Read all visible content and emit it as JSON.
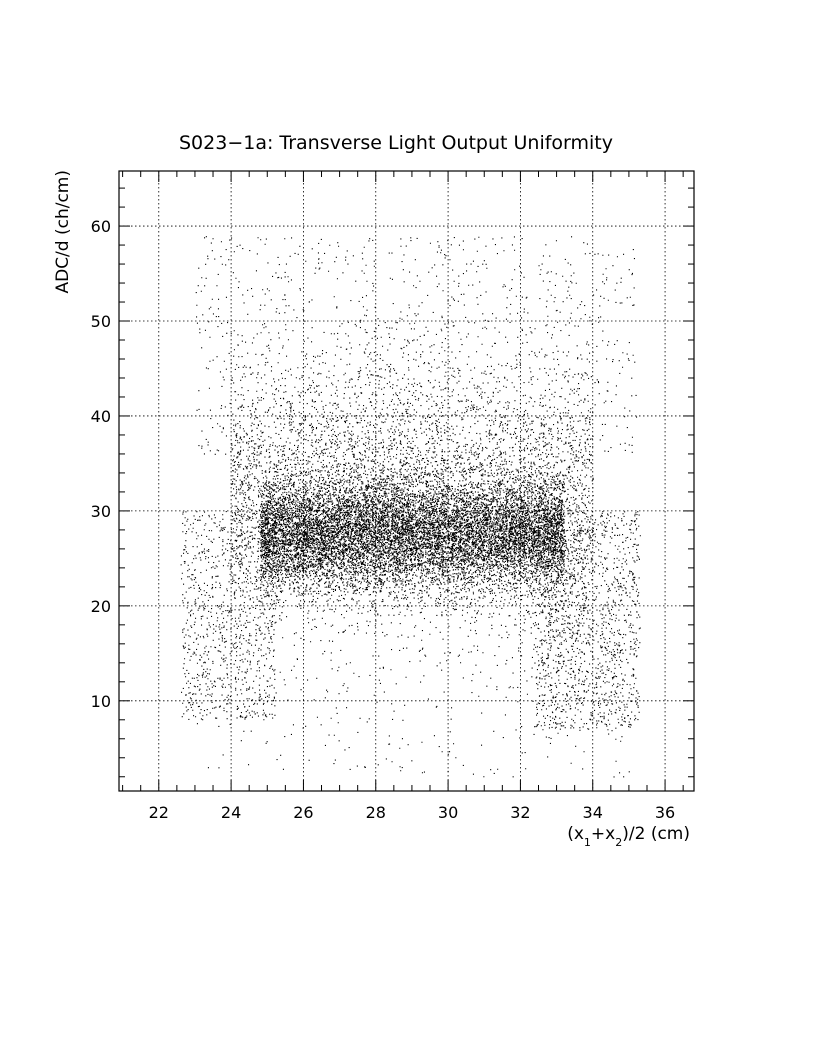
{
  "chart_data": {
    "type": "scatter",
    "title": "S023−1a: Transverse Light Output Uniformity",
    "xlabel": "(x₁+x₂)/2 (cm)",
    "ylabel": "ADC/d (ch/cm)",
    "xlim": [
      20.9,
      36.8
    ],
    "ylim": [
      0.5,
      65.8
    ],
    "x_ticks": [
      22,
      24,
      26,
      28,
      30,
      32,
      34,
      36
    ],
    "y_ticks": [
      10,
      20,
      30,
      40,
      50,
      60
    ],
    "x_tick_labels": [
      "22",
      "24",
      "26",
      "28",
      "30",
      "32",
      "34",
      "36"
    ],
    "y_tick_labels": [
      "10",
      "20",
      "30",
      "40",
      "50",
      "60"
    ],
    "grid": true,
    "legend": "none",
    "marker_color": "#000000",
    "distribution": {
      "core": {
        "x_range": [
          24.8,
          33.2
        ],
        "y_center": 27.5,
        "y_spread": 2.8,
        "points": 11000
      },
      "halo": {
        "x_range": [
          24.0,
          34.0
        ],
        "y_center": 32.0,
        "y_spread": 7.0,
        "points": 5500
      },
      "upper": {
        "x_range": [
          23.0,
          35.2
        ],
        "y_range": [
          36,
          59
        ],
        "points": 900
      },
      "left_tail": {
        "x_range": [
          22.6,
          25.2
        ],
        "y_range": [
          8,
          30
        ],
        "points": 900
      },
      "right_tail": {
        "x_range": [
          32.4,
          35.3
        ],
        "y_range": [
          7,
          30
        ],
        "points": 1400
      },
      "sparse_low": {
        "x_range": [
          23.0,
          35.0
        ],
        "y_range": [
          2,
          22
        ],
        "points": 350
      }
    }
  }
}
